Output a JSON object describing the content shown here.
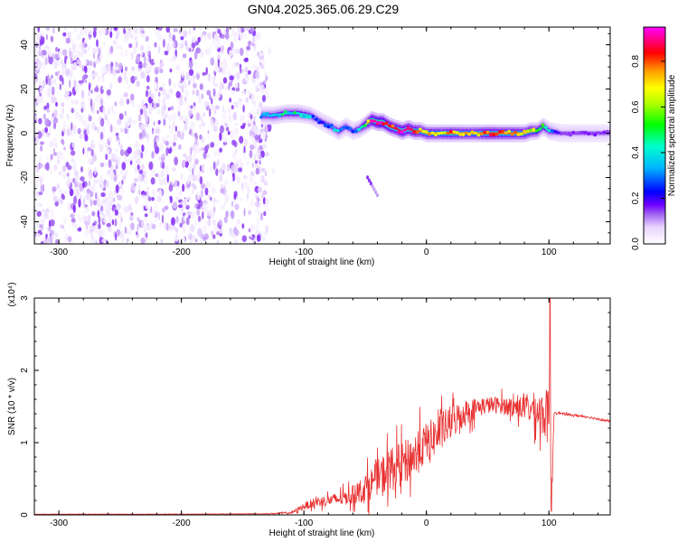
{
  "figure": {
    "title": "GN04.2025.365.06.29.C29"
  },
  "chart_data": [
    {
      "type": "heatmap",
      "title": "GN04.2025.365.06.29.C29",
      "xlabel": "Height of straight line (km)",
      "ylabel": "Frequency (Hz)",
      "xlim": [
        -320,
        150
      ],
      "ylim": [
        -50,
        48
      ],
      "xticks": [
        -300,
        -200,
        -100,
        0,
        100
      ],
      "yticks": [
        -40,
        -20,
        0,
        20,
        40
      ],
      "colorbar": {
        "label": "Normalized spectral amplitude",
        "range": [
          0,
          0.95
        ],
        "ticks": [
          0.0,
          0.2,
          0.4,
          0.6,
          0.8
        ],
        "colormap": [
          "#ffffff",
          "#e6d2ff",
          "#9d5cf0",
          "#7000ff",
          "#0000ff",
          "#00b4ff",
          "#00ffcc",
          "#00ff00",
          "#b4ff00",
          "#ffff00",
          "#ff9900",
          "#ff0000",
          "#ff0080",
          "#ff00ff"
        ]
      },
      "noise_region": {
        "x": [
          -320,
          -130
        ],
        "y": [
          -50,
          48
        ],
        "amplitude": [
          0.02,
          0.2
        ]
      },
      "ridge": {
        "x": [
          -135,
          -125,
          -115,
          -105,
          -95,
          -85,
          -78,
          -72,
          -66,
          -60,
          -55,
          -50,
          -45,
          -40,
          -36,
          -30,
          -25,
          -20,
          -15,
          -10,
          -5,
          0,
          10,
          20,
          30,
          40,
          50,
          60,
          70,
          80,
          85,
          90,
          95,
          100,
          110,
          120,
          130,
          140,
          150
        ],
        "frequency": [
          8,
          8,
          9,
          9,
          8,
          5,
          3,
          1,
          3,
          1,
          2,
          4,
          6,
          5,
          5,
          3,
          2,
          1,
          2,
          1,
          1,
          0,
          0,
          0,
          0,
          0,
          0,
          0,
          0,
          0,
          1,
          1,
          3,
          1,
          0,
          0,
          0,
          0,
          0
        ],
        "amplitude": [
          0.35,
          0.4,
          0.45,
          0.45,
          0.4,
          0.3,
          0.35,
          0.4,
          0.35,
          0.3,
          0.4,
          0.6,
          0.9,
          0.95,
          0.95,
          0.85,
          0.8,
          0.9,
          0.85,
          0.8,
          0.75,
          0.7,
          0.7,
          0.75,
          0.7,
          0.7,
          0.8,
          0.75,
          0.75,
          0.7,
          0.7,
          0.6,
          0.5,
          0.4,
          0.2,
          0.2,
          0.2,
          0.2,
          0.2
        ]
      },
      "minor_feature": {
        "x": [
          -48,
          -40
        ],
        "frequency": [
          -20,
          -28
        ],
        "amplitude": 0.15
      }
    },
    {
      "type": "line",
      "xlabel": "Height of straight line (km)",
      "ylabel": "SNR (10 * v/v)",
      "y_multiplier": "(x10⁴)",
      "xlim": [
        -320,
        150
      ],
      "ylim": [
        0,
        3
      ],
      "xticks": [
        -300,
        -200,
        -100,
        0,
        100
      ],
      "yticks": [
        0,
        1,
        2,
        3
      ],
      "color": "#e83030",
      "envelope": {
        "x": [
          -320,
          -200,
          -130,
          -110,
          -100,
          -90,
          -80,
          -70,
          -60,
          -50,
          -40,
          -30,
          -20,
          -10,
          0,
          10,
          20,
          30,
          40,
          50,
          60,
          70,
          80,
          90,
          95,
          100,
          103,
          104,
          106,
          110,
          120,
          130,
          140,
          150
        ],
        "base": [
          0.01,
          0.01,
          0.015,
          0.03,
          0.12,
          0.18,
          0.2,
          0.22,
          0.28,
          0.36,
          0.52,
          0.62,
          0.72,
          0.82,
          1.0,
          1.12,
          1.28,
          1.4,
          1.48,
          1.52,
          1.52,
          1.5,
          1.48,
          1.45,
          1.4,
          1.35,
          0.6,
          1.42,
          1.42,
          1.4,
          1.38,
          1.36,
          1.33,
          1.29
        ],
        "amp": [
          0.004,
          0.004,
          0.005,
          0.02,
          0.06,
          0.09,
          0.1,
          0.12,
          0.16,
          0.25,
          0.3,
          0.4,
          0.35,
          0.4,
          0.35,
          0.35,
          0.3,
          0.25,
          0.18,
          0.15,
          0.15,
          0.16,
          0.22,
          0.32,
          0.4,
          0.5,
          0.5,
          0.03,
          0.02,
          0.02,
          0.02,
          0.02,
          0.02,
          0.02
        ]
      },
      "spike": {
        "x": 101,
        "value": 3.0
      },
      "dip": {
        "x": 102,
        "value": 0.05
      }
    }
  ]
}
